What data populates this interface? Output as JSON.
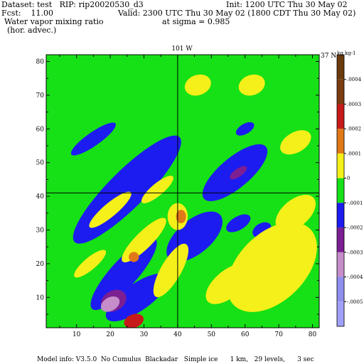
{
  "header": {
    "dataset": "Dataset: test   RIP: rip20020530_d3",
    "init": "Init: 1200 UTC Thu 30 May 02",
    "fcst": "Fcst:    11.00",
    "valid": "Valid: 2300 UTC Thu 30 May 02 (1800 CDT Thu 30 May 02)",
    "field_line1": "Water vapor mixing ratio",
    "field_line2": "(hor. advec.)",
    "sigma": "at sigma = 0.985"
  },
  "footer": {
    "model_info": "Model info: V3.5.0  No Cumulus  Blackadar   Simple ice      1 km,   29 levels,      3 sec"
  },
  "chart_data": {
    "type": "heatmap",
    "title": "",
    "xlabel": "",
    "ylabel": "",
    "xlim": [
      1,
      82
    ],
    "ylim": [
      1,
      82
    ],
    "x_ticks": [
      10,
      20,
      30,
      40,
      50,
      60,
      70,
      80
    ],
    "y_ticks": [
      10,
      20,
      30,
      40,
      50,
      60,
      70,
      80
    ],
    "grid": false,
    "crosshair": {
      "vertical_x": 40,
      "horizontal_y": 41,
      "vertical_label": "101 W",
      "horizontal_label": "37 N"
    },
    "colorbar": {
      "unit": "kg kg-1",
      "labels": [
        ".0004",
        ".0003",
        ".0002",
        ".0001",
        "0",
        "-.0001",
        "-.0002",
        "-.0003",
        "-.0004",
        "-.0005"
      ],
      "colors": [
        "#6b3a0e",
        "#7a3c10",
        "#c61a1a",
        "#e07818",
        "#f5f019",
        "#16e016",
        "#1c1cf0",
        "#7b1f93",
        "#c58dc9",
        "#8f8ff0",
        "#a0a0f8"
      ]
    },
    "background_level": "0",
    "regions": [
      {
        "level": "-.0001",
        "color": "#1c1cf0",
        "center": [
          25,
          42
        ],
        "axes": [
          22,
          5.5
        ],
        "angle": 45
      },
      {
        "level": "-.0001",
        "color": "#1c1cf0",
        "center": [
          15,
          57
        ],
        "axes": [
          8,
          2
        ],
        "angle": 35
      },
      {
        "level": "-.0001",
        "color": "#1c1cf0",
        "center": [
          24,
          17
        ],
        "axes": [
          14,
          4
        ],
        "angle": 48
      },
      {
        "level": "-.0001",
        "color": "#1c1cf0",
        "center": [
          28,
          10
        ],
        "axes": [
          11,
          4
        ],
        "angle": 35
      },
      {
        "level": "-.0001",
        "color": "#1c1cf0",
        "center": [
          45,
          28
        ],
        "axes": [
          10,
          5
        ],
        "angle": 40
      },
      {
        "level": "-.0001",
        "color": "#1c1cf0",
        "center": [
          57,
          47
        ],
        "axes": [
          12,
          4.5
        ],
        "angle": 40
      },
      {
        "level": "-.0001",
        "color": "#1c1cf0",
        "center": [
          60,
          60
        ],
        "axes": [
          3,
          1.5
        ],
        "angle": 30
      },
      {
        "level": "-.0001",
        "color": "#1c1cf0",
        "center": [
          58,
          32
        ],
        "axes": [
          4,
          2
        ],
        "angle": 30
      },
      {
        "level": "-.0001",
        "color": "#1c1cf0",
        "center": [
          65,
          30
        ],
        "axes": [
          3,
          2
        ],
        "angle": 30
      },
      {
        "level": "-.0003",
        "color": "#7b1f93",
        "center": [
          58,
          47
        ],
        "axes": [
          3,
          1.2
        ],
        "angle": 35
      },
      {
        "level": "-.0003",
        "color": "#7b1f93",
        "center": [
          21,
          9
        ],
        "axes": [
          4,
          3
        ],
        "angle": 30
      },
      {
        "level": "-.0004",
        "color": "#c58dc9",
        "center": [
          20,
          8
        ],
        "axes": [
          3,
          2
        ],
        "angle": 30
      },
      {
        "level": ".0001",
        "color": "#f5f019",
        "center": [
          20,
          36
        ],
        "axes": [
          8,
          2
        ],
        "angle": 40
      },
      {
        "level": ".0001",
        "color": "#f5f019",
        "center": [
          30,
          27
        ],
        "axes": [
          9,
          2.5
        ],
        "angle": 45
      },
      {
        "level": ".0001",
        "color": "#f5f019",
        "center": [
          14,
          20
        ],
        "axes": [
          6,
          1.8
        ],
        "angle": 40
      },
      {
        "level": ".0001",
        "color": "#f5f019",
        "center": [
          68,
          19
        ],
        "axes": [
          16,
          10
        ],
        "angle": 45
      },
      {
        "level": ".0001",
        "color": "#f5f019",
        "center": [
          75,
          35
        ],
        "axes": [
          7,
          4
        ],
        "angle": 40
      },
      {
        "level": ".0001",
        "color": "#f5f019",
        "center": [
          38,
          18
        ],
        "axes": [
          9,
          3
        ],
        "angle": 60
      },
      {
        "level": ".0001",
        "color": "#f5f019",
        "center": [
          46,
          73
        ],
        "axes": [
          4,
          3
        ],
        "angle": 20
      },
      {
        "level": ".0001",
        "color": "#f5f019",
        "center": [
          62,
          73
        ],
        "axes": [
          4,
          3
        ],
        "angle": 20
      },
      {
        "level": ".0001",
        "color": "#f5f019",
        "center": [
          75,
          56
        ],
        "axes": [
          5,
          3
        ],
        "angle": 30
      },
      {
        "level": ".0001",
        "color": "#f5f019",
        "center": [
          55,
          14
        ],
        "axes": [
          8,
          4
        ],
        "angle": 40
      },
      {
        "level": ".0001",
        "color": "#f5f019",
        "center": [
          34,
          42
        ],
        "axes": [
          6,
          1.8
        ],
        "angle": 40
      },
      {
        "level": ".0001",
        "color": "#f5f019",
        "center": [
          40,
          34
        ],
        "axes": [
          3,
          4
        ],
        "angle": 0
      },
      {
        "level": ".0002",
        "color": "#e07818",
        "center": [
          41,
          34
        ],
        "axes": [
          1.5,
          2
        ],
        "angle": 0
      },
      {
        "level": ".0002",
        "color": "#e07818",
        "center": [
          27,
          22
        ],
        "axes": [
          1.5,
          1.5
        ],
        "angle": 0
      },
      {
        "level": ".0003",
        "color": "#c61a1a",
        "center": [
          27,
          3
        ],
        "axes": [
          3,
          2
        ],
        "angle": 20
      }
    ]
  }
}
